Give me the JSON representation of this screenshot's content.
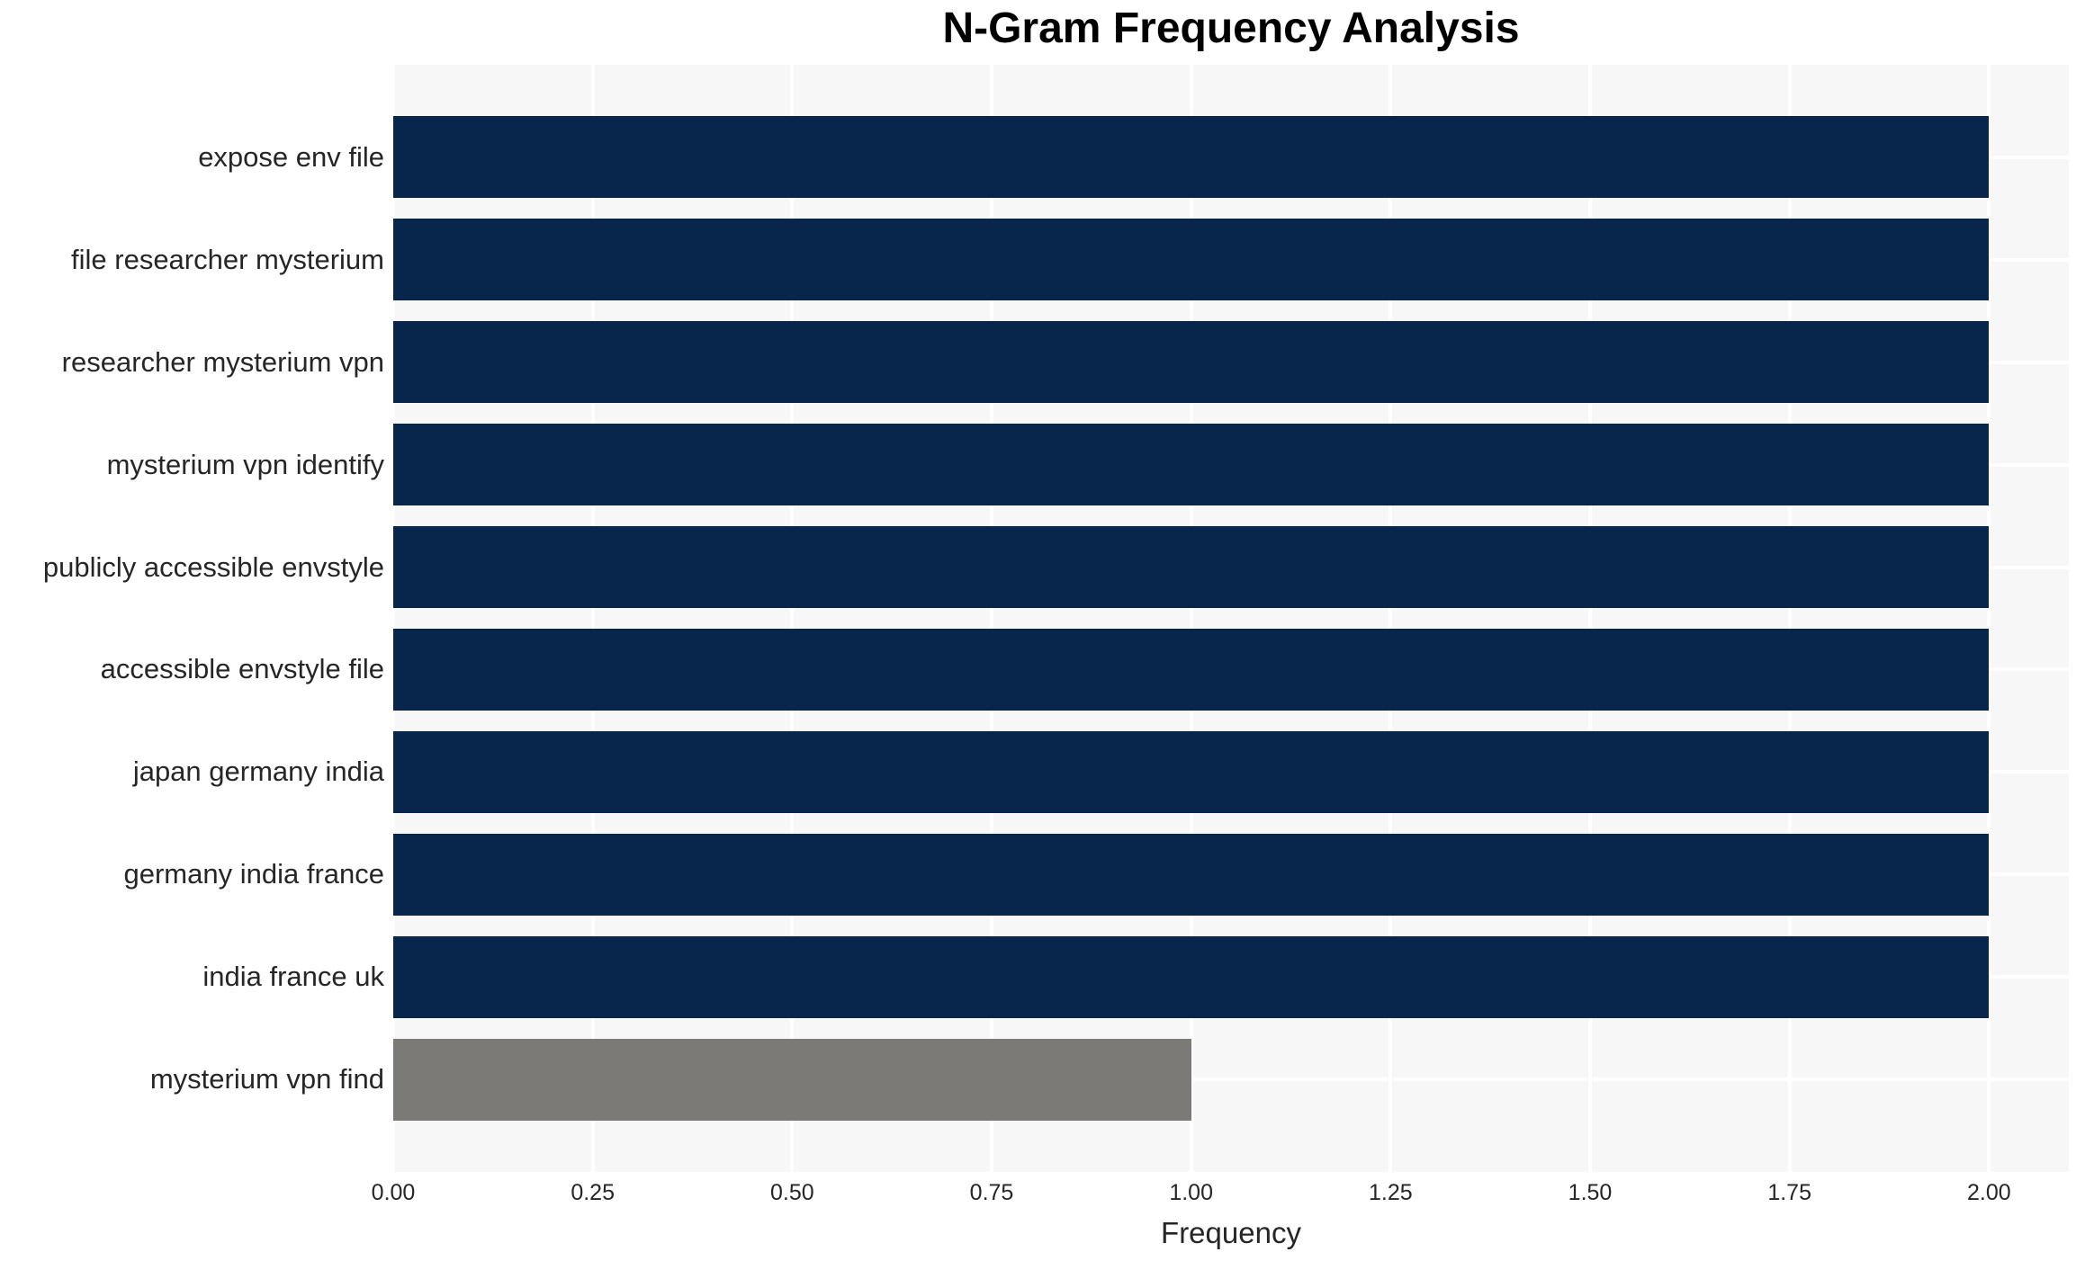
{
  "chart_data": {
    "type": "bar",
    "orientation": "horizontal",
    "title": "N-Gram Frequency Analysis",
    "xlabel": "Frequency",
    "ylabel": "",
    "categories": [
      "expose env file",
      "file researcher mysterium",
      "researcher mysterium vpn",
      "mysterium vpn identify",
      "publicly accessible envstyle",
      "accessible envstyle file",
      "japan germany india",
      "germany india france",
      "india france uk",
      "mysterium vpn find"
    ],
    "values": [
      2,
      2,
      2,
      2,
      2,
      2,
      2,
      2,
      2,
      1
    ],
    "bar_colors": [
      "#08254b",
      "#08254b",
      "#08254b",
      "#08254b",
      "#08254b",
      "#08254b",
      "#08254b",
      "#08254b",
      "#08254b",
      "#7b7a77"
    ],
    "xlim": [
      0,
      2.1
    ],
    "xticks": [
      "0.00",
      "0.25",
      "0.50",
      "0.75",
      "1.00",
      "1.25",
      "1.50",
      "1.75",
      "2.00"
    ],
    "xtick_values": [
      0,
      0.25,
      0.5,
      0.75,
      1.0,
      1.25,
      1.5,
      1.75,
      2.0
    ],
    "grid": "on",
    "legend": "none",
    "colors": {
      "bar_default": "#08254b",
      "bar_highlight": "#7b7a77",
      "plot_background": "#f7f7f7",
      "gridline": "#ffffff",
      "tick_text": "#262626",
      "title_text": "#000000"
    }
  }
}
